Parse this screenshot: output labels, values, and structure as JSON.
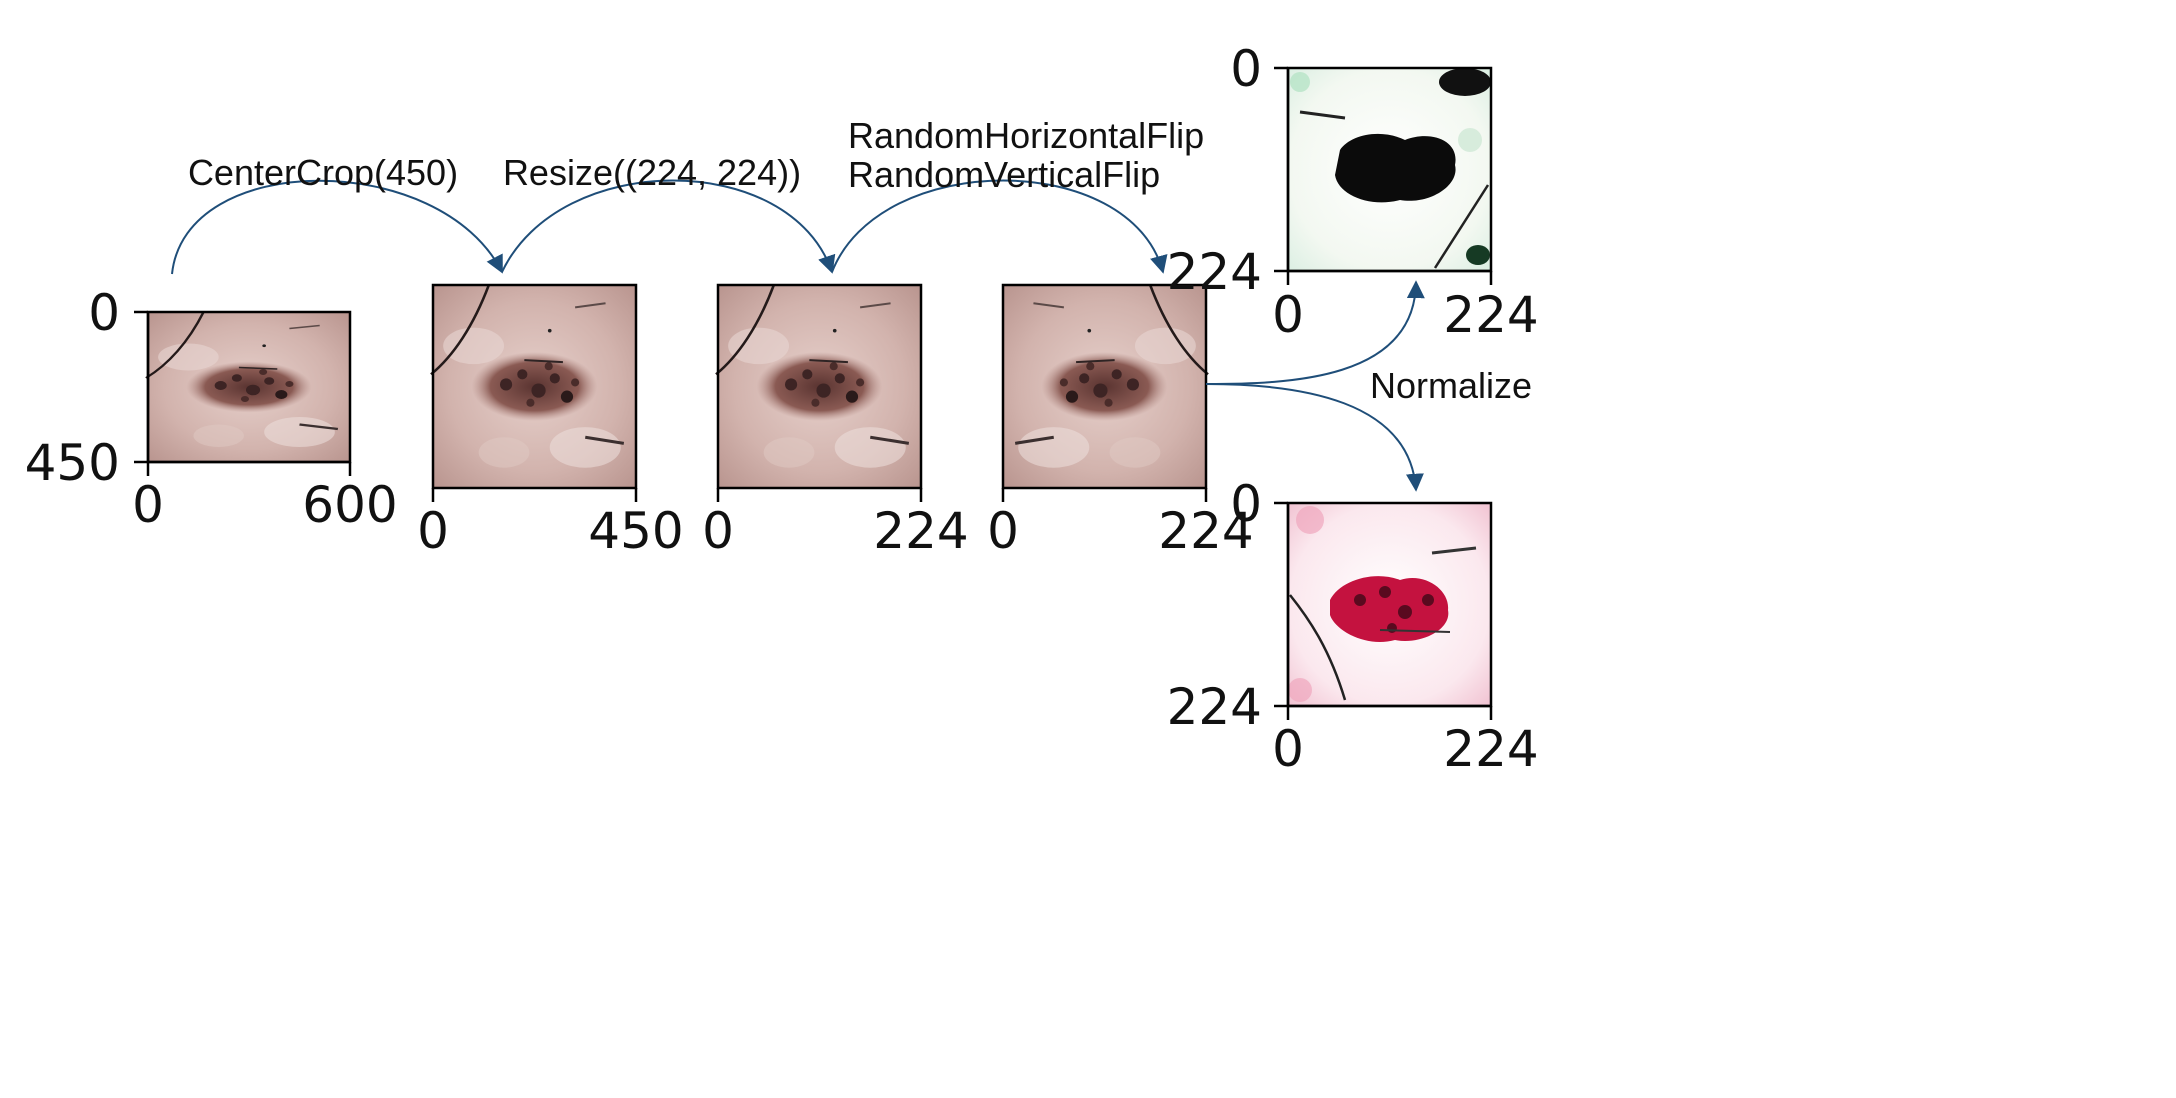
{
  "colors": {
    "arrow": "#1f4e79",
    "axis": "#000000",
    "skin": "#c9a9a3",
    "lesion": "#7a4a45",
    "lesion_dark": "#3d2424",
    "normalized_bg_1": "#f2f7f0",
    "normalized_lesion_1": "#0b0b0b",
    "normalized_bg_2": "#f6d9e4",
    "normalized_lesion_2": "#c4123f"
  },
  "operations": {
    "center_crop": "CenterCrop(450)",
    "resize": "Resize((224, 224))",
    "flip_h": "RandomHorizontalFlip",
    "flip_v": "RandomVerticalFlip",
    "normalize": "Normalize"
  },
  "panels": {
    "original": {
      "y_top": "0",
      "y_bottom": "450",
      "x_left": "0",
      "x_right": "600"
    },
    "crop": {
      "x_left": "0",
      "x_right": "450"
    },
    "resized": {
      "x_left": "0",
      "x_right": "224"
    },
    "flipped": {
      "x_left": "0",
      "x_right": "224"
    },
    "normalized_top": {
      "y_top": "0",
      "y_bottom": "224",
      "x_left": "0",
      "x_right": "224"
    },
    "normalized_bottom": {
      "y_top": "0",
      "y_bottom": "224",
      "x_left": "0",
      "x_right": "224"
    }
  }
}
